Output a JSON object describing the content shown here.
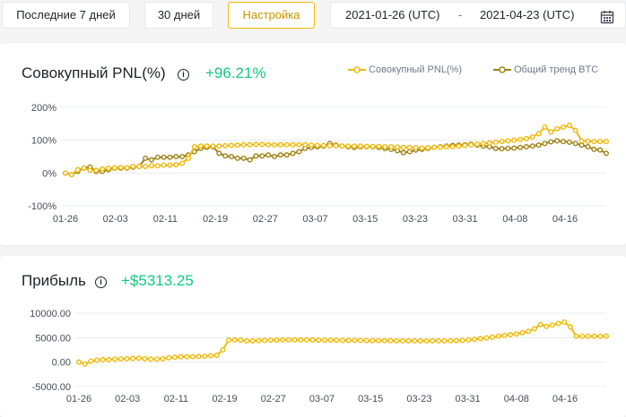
{
  "toolbar": {
    "btn_7d": "Последние 7 дней",
    "btn_30d": "30 дней",
    "btn_custom": "Настройка",
    "date_start": "2021-01-26 (UTC)",
    "date_sep": "-",
    "date_end": "2021-04-23 (UTC)"
  },
  "pnl_card": {
    "title": "Совокупный PNL(%)",
    "value": "+96.21%",
    "legend_pnl": "Совокупный PNL(%)",
    "legend_btc": "Общий тренд BTC"
  },
  "profit_card": {
    "title": "Прибыль",
    "value": "+$5313.25"
  },
  "colors": {
    "pnl": "#f0b90b",
    "btc": "#a08214",
    "positive": "#0ecb81",
    "grid": "#eaecef"
  },
  "chart_data": [
    {
      "type": "line",
      "title": "Совокупный PNL(%)",
      "x_ticks": [
        "01-26",
        "02-03",
        "02-11",
        "02-19",
        "02-27",
        "03-07",
        "03-15",
        "03-23",
        "03-31",
        "04-08",
        "04-16"
      ],
      "y_ticks": [
        "200%",
        "100%",
        "0%",
        "-100%"
      ],
      "ylim": [
        -100,
        200
      ],
      "grid": true,
      "legend": "top-right",
      "series": [
        {
          "name": "Совокупный PNL(%)",
          "values": [
            0,
            -5,
            10,
            15,
            8,
            8,
            12,
            15,
            16,
            17,
            16,
            20,
            20,
            20,
            22,
            22,
            24,
            24,
            25,
            30,
            45,
            80,
            82,
            82,
            82,
            82,
            83,
            84,
            85,
            86,
            86,
            87,
            87,
            86,
            86,
            86,
            86,
            86,
            86,
            86,
            85,
            84,
            84,
            83,
            83,
            82,
            82,
            82,
            82,
            81,
            81,
            81,
            80,
            80,
            79,
            78,
            78,
            77,
            76,
            77,
            78,
            79,
            80,
            80,
            82,
            84,
            86,
            88,
            90,
            92,
            94,
            96,
            98,
            100,
            102,
            105,
            110,
            120,
            140,
            125,
            135,
            140,
            145,
            130,
            98,
            97,
            96,
            96,
            96
          ]
        },
        {
          "name": "Общий тренд BTC",
          "values": [
            0,
            -5,
            5,
            15,
            18,
            5,
            5,
            10,
            15,
            15,
            15,
            18,
            20,
            45,
            40,
            48,
            48,
            48,
            50,
            50,
            55,
            65,
            75,
            78,
            80,
            60,
            52,
            50,
            45,
            45,
            40,
            52,
            52,
            55,
            50,
            55,
            55,
            60,
            65,
            75,
            78,
            80,
            82,
            90,
            85,
            82,
            80,
            78,
            80,
            80,
            80,
            78,
            75,
            72,
            68,
            62,
            65,
            70,
            72,
            75,
            78,
            80,
            82,
            84,
            85,
            86,
            88,
            85,
            82,
            80,
            75,
            74,
            75,
            76,
            78,
            80,
            82,
            85,
            90,
            95,
            98,
            96,
            94,
            90,
            85,
            80,
            72,
            70,
            60
          ]
        }
      ]
    },
    {
      "type": "line",
      "title": "Прибыль",
      "x_ticks": [
        "01-26",
        "02-03",
        "02-11",
        "02-19",
        "02-27",
        "03-07",
        "03-15",
        "03-23",
        "03-31",
        "04-08",
        "04-16"
      ],
      "y_ticks": [
        "10000.00",
        "5000.00",
        "0.00",
        "-5000.00"
      ],
      "ylim": [
        -5000,
        10000
      ],
      "grid": true,
      "series": [
        {
          "name": "Прибыль",
          "values": [
            0,
            -400,
            200,
            400,
            500,
            500,
            600,
            650,
            700,
            750,
            800,
            700,
            600,
            600,
            700,
            900,
            1000,
            1100,
            1100,
            1100,
            1150,
            1200,
            1300,
            1400,
            2500,
            4500,
            4550,
            4500,
            4350,
            4350,
            4400,
            4450,
            4500,
            4500,
            4550,
            4550,
            4550,
            4550,
            4550,
            4550,
            4500,
            4500,
            4500,
            4500,
            4450,
            4450,
            4450,
            4450,
            4400,
            4400,
            4400,
            4400,
            4400,
            4350,
            4350,
            4350,
            4350,
            4350,
            4350,
            4350,
            4350,
            4350,
            4350,
            4400,
            4450,
            4550,
            4650,
            4800,
            4950,
            5100,
            5300,
            5450,
            5600,
            5750,
            6000,
            6300,
            6800,
            7700,
            7300,
            7600,
            7900,
            8200,
            7200,
            5300,
            5300,
            5300,
            5300,
            5300,
            5313
          ]
        }
      ]
    }
  ]
}
